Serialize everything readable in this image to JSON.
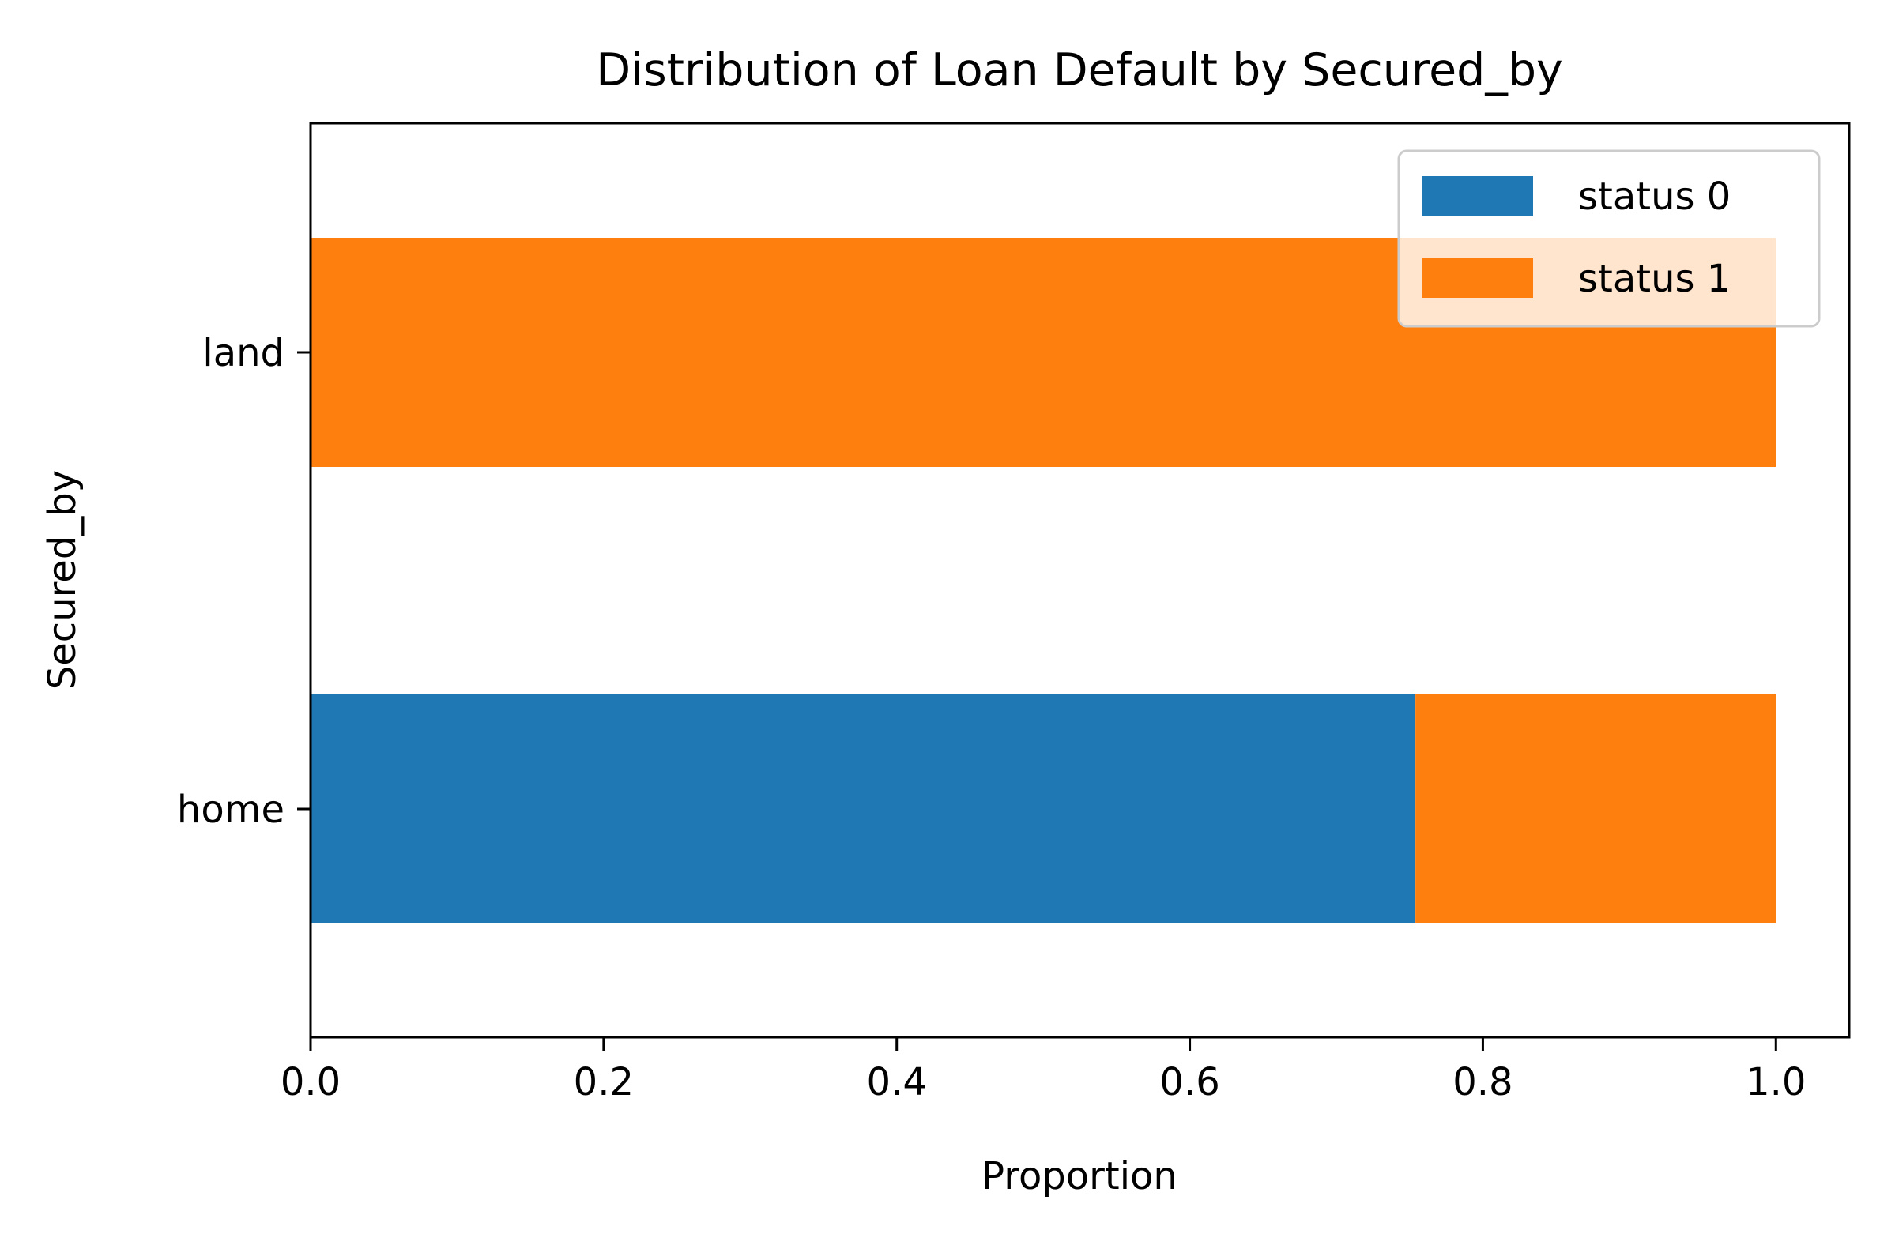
{
  "chart_data": {
    "type": "bar",
    "orientation": "horizontal",
    "stacked": true,
    "title": "Distribution of Loan Default by Secured_by",
    "xlabel": "Proportion",
    "ylabel": "Secured_by",
    "categories": [
      "home",
      "land"
    ],
    "series": [
      {
        "name": "status 0",
        "color": "#1f77b4",
        "values": [
          0.754,
          0.0
        ]
      },
      {
        "name": "status 1",
        "color": "#ff7f0e",
        "values": [
          0.246,
          1.0
        ]
      }
    ],
    "xlim": [
      0.0,
      1.05
    ],
    "xticks": [
      0.0,
      0.2,
      0.4,
      0.6,
      0.8,
      1.0
    ],
    "xtick_labels": [
      "0.0",
      "0.2",
      "0.4",
      "0.6",
      "0.8",
      "1.0"
    ],
    "grid": false,
    "legend_position": "top-right"
  }
}
